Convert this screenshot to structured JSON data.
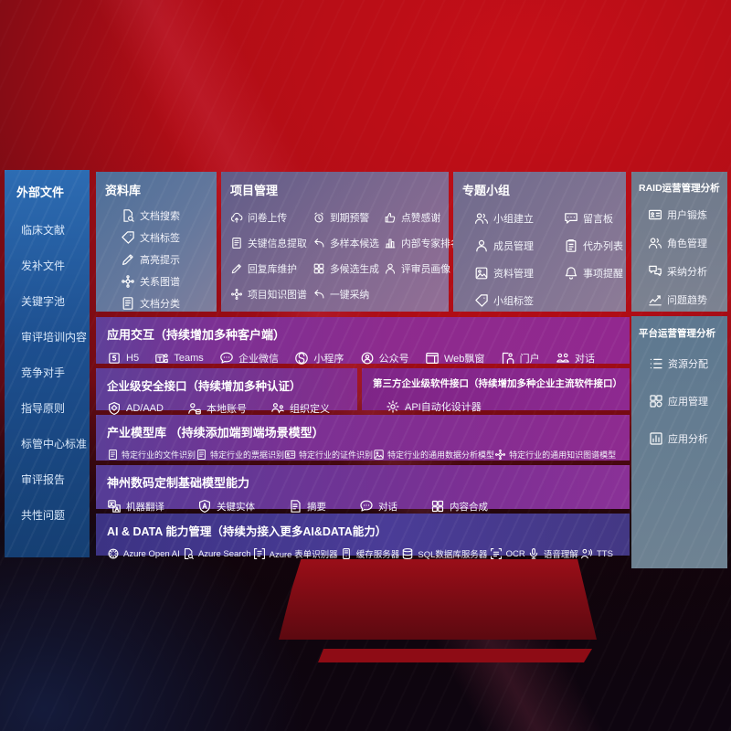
{
  "colors": {
    "background_red": "#c3101b",
    "sidebar_blue": "#1d4f8f",
    "panel_magenta": "#8d2b8e",
    "panel_indigo": "#433a92",
    "panel_gray": "#75808f"
  },
  "sidebar": {
    "title": "外部文件",
    "items": [
      {
        "label": "临床文献"
      },
      {
        "label": "发补文件"
      },
      {
        "label": "关键字池"
      },
      {
        "label": "审评培训内容"
      },
      {
        "label": "竞争对手"
      },
      {
        "label": "指导原则"
      },
      {
        "label": "标管中心标准"
      },
      {
        "label": "审评报告"
      },
      {
        "label": "共性问题"
      }
    ]
  },
  "panels": {
    "repository": {
      "title": "资料库",
      "items": [
        {
          "icon": "doc-search",
          "label": "文档搜索"
        },
        {
          "icon": "tag",
          "label": "文档标签"
        },
        {
          "icon": "pen",
          "label": "高亮提示"
        },
        {
          "icon": "network",
          "label": "关系图谱"
        },
        {
          "icon": "doc-lines",
          "label": "文档分类"
        }
      ]
    },
    "project": {
      "title": "项目管理",
      "items": [
        {
          "icon": "cloud-upload",
          "label": "问卷上传"
        },
        {
          "icon": "alarm",
          "label": "到期预警"
        },
        {
          "icon": "thumbs-up",
          "label": "点赞感谢"
        },
        {
          "icon": "doc-lines",
          "label": "关键信息提取"
        },
        {
          "icon": "arrow-back",
          "label": "多样本候选"
        },
        {
          "icon": "rank-chart",
          "label": "内部专家排名"
        },
        {
          "icon": "pen",
          "label": "回复库维护"
        },
        {
          "icon": "grid-4",
          "label": "多候选生成"
        },
        {
          "icon": "person",
          "label": "评审员画像"
        },
        {
          "icon": "network",
          "label": "项目知识图谱"
        },
        {
          "icon": "arrow-back",
          "label": "一键采纳"
        }
      ]
    },
    "topic": {
      "title": "专题小组",
      "items": [
        {
          "icon": "people",
          "label": "小组建立"
        },
        {
          "icon": "bbs",
          "label": "留言板"
        },
        {
          "icon": "person",
          "label": "成员管理"
        },
        {
          "icon": "clipboard",
          "label": "代办列表"
        },
        {
          "icon": "album",
          "label": "资料管理"
        },
        {
          "icon": "bell",
          "label": "事项提醒"
        },
        {
          "icon": "tag",
          "label": "小组标签"
        }
      ]
    },
    "raid": {
      "title": "RAID运营管理分析",
      "items": [
        {
          "icon": "id-card",
          "label": "用户锻炼"
        },
        {
          "icon": "people",
          "label": "角色管理"
        },
        {
          "icon": "chat-qa",
          "label": "采纳分析"
        },
        {
          "icon": "trend-chart",
          "label": "问题趋势"
        }
      ]
    },
    "platform": {
      "title": "平台运营管理分析",
      "items": [
        {
          "icon": "list-settings",
          "label": "资源分配"
        },
        {
          "icon": "app-grid",
          "label": "应用管理"
        },
        {
          "icon": "chart-box",
          "label": "应用分析"
        }
      ]
    },
    "interaction": {
      "title": "应用交互（持续增加多种客户端）",
      "items": [
        {
          "icon": "h5",
          "label": "H5"
        },
        {
          "icon": "teams",
          "label": "Teams"
        },
        {
          "icon": "chat-bubble",
          "label": "企业微信"
        },
        {
          "icon": "mini-program",
          "label": "小程序"
        },
        {
          "icon": "official-account",
          "label": "公众号"
        },
        {
          "icon": "web-window",
          "label": "Web飘窗"
        },
        {
          "icon": "portal",
          "label": "门户"
        },
        {
          "icon": "dialog-people",
          "label": "对话"
        }
      ]
    },
    "security": {
      "title": "企业级安全接口（持续增加多种认证）",
      "items": [
        {
          "icon": "shield-diamond",
          "label": "AD/AAD"
        },
        {
          "icon": "person-badge",
          "label": "本地账号"
        },
        {
          "icon": "org-people",
          "label": "组织定义"
        }
      ]
    },
    "third_party": {
      "title": "第三方企业级软件接口（持续增加多种企业主流软件接口）",
      "items": [
        {
          "icon": "api-gear",
          "label": "API自动化设计器"
        }
      ]
    },
    "industry_models": {
      "title": "产业模型库 （持续添加端到端场景模型）",
      "items": [
        {
          "icon": "doc-lines",
          "label": "特定行业的文件识别"
        },
        {
          "icon": "doc-lines",
          "label": "特定行业的票据识别"
        },
        {
          "icon": "id-card",
          "label": "特定行业的证件识别"
        },
        {
          "icon": "album",
          "label": "特定行业的通用数据分析模型"
        },
        {
          "icon": "network",
          "label": "特定行业的通用知识图谱模型"
        }
      ]
    },
    "base_models": {
      "title": "神州数码定制基础模型能力",
      "items": [
        {
          "icon": "translate",
          "label": "机器翻译"
        },
        {
          "icon": "shield-a",
          "label": "关键实体"
        },
        {
          "icon": "doc-pen",
          "label": "摘要"
        },
        {
          "icon": "chat-dots",
          "label": "对话"
        },
        {
          "icon": "grid-4",
          "label": "内容合成"
        }
      ]
    },
    "ai_data": {
      "title": "AI & DATA 能力管理（持续为接入更多AI&DATA能力）",
      "items": [
        {
          "icon": "openai",
          "label": "Azure Open AI"
        },
        {
          "icon": "doc-search",
          "label": "Azure Search"
        },
        {
          "icon": "form-brackets",
          "label": "Azure 表单识别器"
        },
        {
          "icon": "server",
          "label": "缓存服务器"
        },
        {
          "icon": "database",
          "label": "SQL数据库服务器"
        },
        {
          "icon": "ocr-frame",
          "label": "OCR"
        },
        {
          "icon": "microphone",
          "label": "语音理解"
        },
        {
          "icon": "speaker-person",
          "label": "TTS"
        }
      ]
    }
  }
}
